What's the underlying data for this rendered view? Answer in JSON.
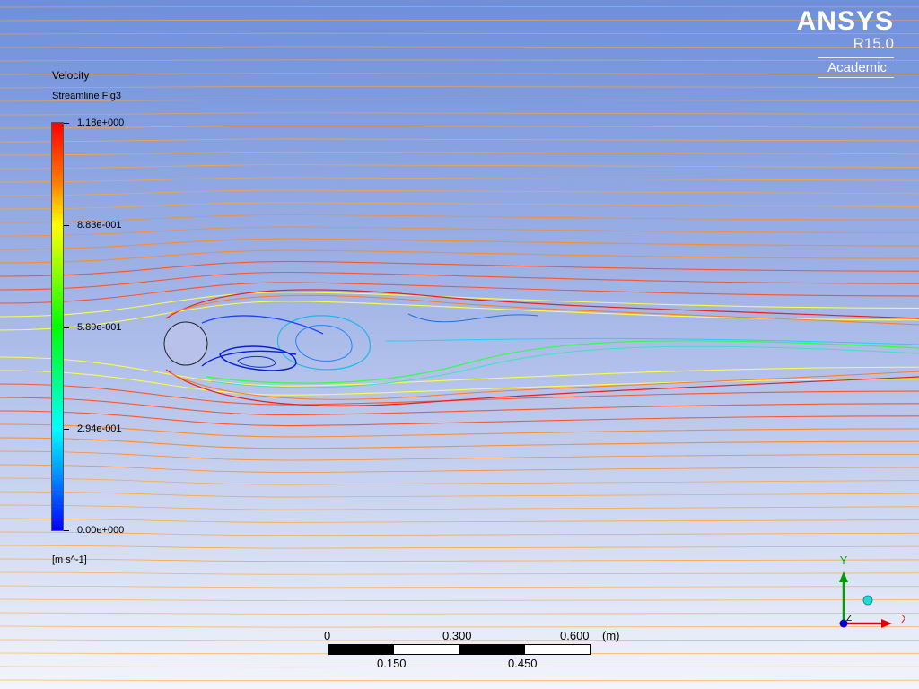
{
  "legend": {
    "title": "Velocity",
    "subtitle": "Streamline Fig3",
    "ticks": [
      "1.18e+000",
      "8.83e-001",
      "5.89e-001",
      "2.94e-001",
      "0.00e+000"
    ],
    "unit": "[m s^-1]"
  },
  "logo": {
    "name": "ANSYS",
    "version": "R15.0",
    "edition": "Academic"
  },
  "scale": {
    "top_labels": [
      "0",
      "0.300",
      "0.600"
    ],
    "unit": "(m)",
    "bottom_labels": [
      "0.150",
      "0.450"
    ]
  },
  "triad": {
    "y": "Y",
    "x": "X",
    "z": "Z"
  },
  "colors": {
    "bg_top": "#6e8fdc",
    "bg_bottom": "#f3f5fb",
    "axis_x": "#e00000",
    "axis_y": "#00a000",
    "axis_z": "#0000cc"
  }
}
